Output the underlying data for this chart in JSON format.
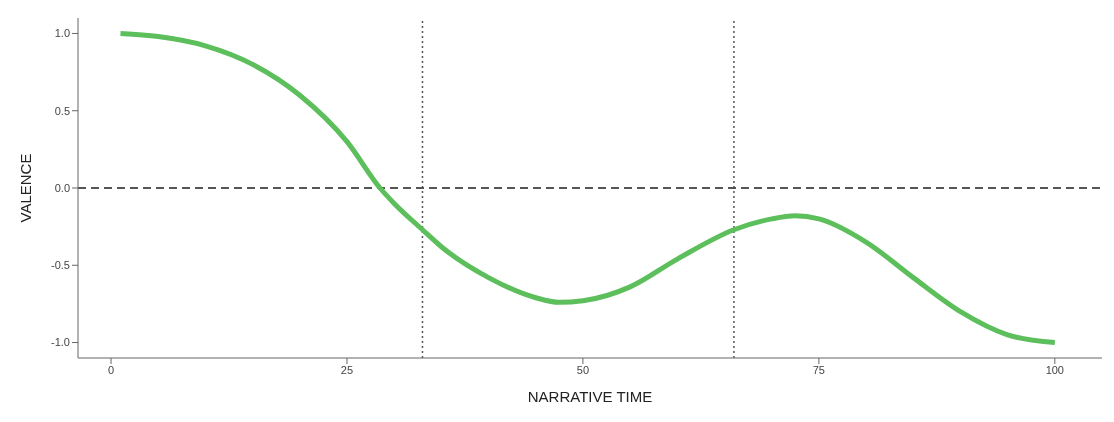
{
  "chart_data": {
    "type": "line",
    "xlabel": "NARRATIVE TIME",
    "ylabel": "VALENCE",
    "x": [
      1,
      5,
      10,
      15,
      20,
      25,
      28.5,
      30,
      33,
      35,
      40,
      45,
      47.5,
      50,
      55,
      60,
      66,
      70,
      72.5,
      75,
      80,
      85,
      90,
      95,
      100
    ],
    "series": [
      {
        "color": "#5cbf5c",
        "values": [
          1.0,
          0.98,
          0.92,
          0.8,
          0.6,
          0.3,
          0,
          -0.1,
          -0.27,
          -0.38,
          -0.58,
          -0.71,
          -0.74,
          -0.73,
          -0.64,
          -0.46,
          -0.27,
          -0.2,
          -0.18,
          -0.2,
          -0.35,
          -0.58,
          -0.8,
          -0.95,
          -1.0
        ]
      }
    ],
    "xlim": [
      -3.5,
      105
    ],
    "xticks": [
      0,
      25,
      50,
      75,
      100
    ],
    "ylim": [
      -1.1,
      1.1
    ],
    "yticks": [
      {
        "value": 1,
        "label": "1.0"
      },
      {
        "value": 0.5,
        "label": "0.5"
      },
      {
        "value": 0,
        "label": "0.0"
      },
      {
        "value": -0.5,
        "label": "-0.5"
      },
      {
        "value": -1,
        "label": "-1.0"
      }
    ],
    "ref_lines": [
      {
        "axis": "y",
        "value": 0,
        "label": null,
        "color": "#555555",
        "line_style": "dashed"
      },
      {
        "axis": "x",
        "value": 33,
        "label": null,
        "color": "#555555",
        "line_style": "dotted"
      },
      {
        "axis": "x",
        "value": 66,
        "label": null,
        "color": "#555555",
        "line_style": "dotted"
      }
    ],
    "grid": false,
    "legend": false,
    "marker": "none",
    "line_style": "solid"
  }
}
